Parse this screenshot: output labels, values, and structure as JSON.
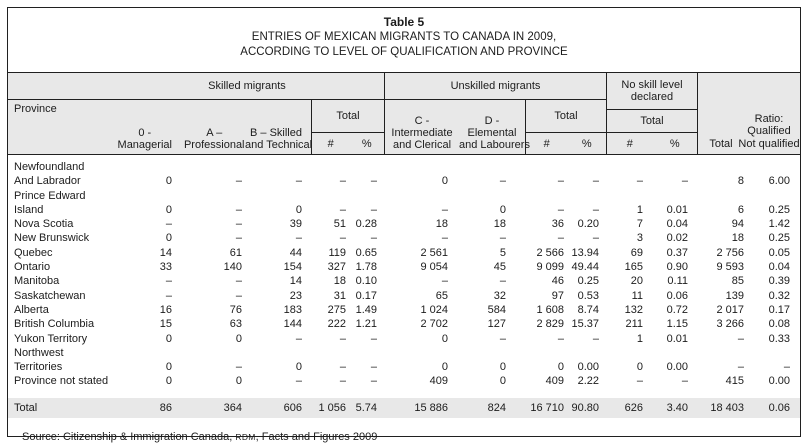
{
  "title": {
    "table_label": "Table 5",
    "line1": "ENTRIES OF MEXICAN MIGRANTS TO CANADA IN 2009,",
    "line2": "ACCORDING TO LEVEL OF QUALIFICATION AND PROVINCE"
  },
  "colors": {
    "band_gray": "#e8e8e8",
    "border": "#202020"
  },
  "header": {
    "province": "Province",
    "skilled_group": "Skilled migrants",
    "unskilled_group": "Unskilled migrants",
    "no_skill_group": "No skill level\ndeclared",
    "col_managerial": "0 -\nManagerial",
    "col_professional": "A –\nProfessional",
    "col_skilled_technical": "B – Skilled\nand Technical",
    "col_intermediate": "C -\nIntermediate\nand Clerical",
    "col_elemental": "D -\nElemental\nand Labourers",
    "total_label": "Total",
    "hash": "#",
    "percent": "%",
    "grand_total": "Total",
    "ratio": "Ratio:\nQualified\nNot qualified"
  },
  "rows": [
    {
      "province": "Newfoundland\nAnd Labrador",
      "values": [
        "0",
        "–",
        "–",
        "–",
        "–",
        "0",
        "–",
        "–",
        "–",
        "–",
        "–",
        "8",
        "6.00"
      ]
    },
    {
      "province": "Prince Edward Island",
      "values": [
        "0",
        "–",
        "0",
        "–",
        "–",
        "–",
        "0",
        "–",
        "–",
        "1",
        "0.01",
        "6",
        "0.25"
      ]
    },
    {
      "province": "Nova Scotia",
      "values": [
        "–",
        "–",
        "39",
        "51",
        "0.28",
        "18",
        "18",
        "36",
        "0.20",
        "7",
        "0.04",
        "94",
        "1.42"
      ]
    },
    {
      "province": "New Brunswick",
      "values": [
        "0",
        "–",
        "–",
        "–",
        "–",
        "–",
        "–",
        "–",
        "–",
        "3",
        "0.02",
        "18",
        "0.25"
      ]
    },
    {
      "province": "Quebec",
      "values": [
        "14",
        "61",
        "44",
        "119",
        "0.65",
        "2 561",
        "5",
        "2 566",
        "13.94",
        "69",
        "0.37",
        "2 756",
        "0.05"
      ]
    },
    {
      "province": "Ontario",
      "values": [
        "33",
        "140",
        "154",
        "327",
        "1.78",
        "9 054",
        "45",
        "9 099",
        "49.44",
        "165",
        "0.90",
        "9 593",
        "0.04"
      ]
    },
    {
      "province": "Manitoba",
      "values": [
        "–",
        "–",
        "14",
        "18",
        "0.10",
        "–",
        "–",
        "46",
        "0.25",
        "20",
        "0.11",
        "85",
        "0.39"
      ]
    },
    {
      "province": "Saskatchewan",
      "values": [
        "–",
        "–",
        "23",
        "31",
        "0.17",
        "65",
        "32",
        "97",
        "0.53",
        "11",
        "0.06",
        "139",
        "0.32"
      ]
    },
    {
      "province": "Alberta",
      "values": [
        "16",
        "76",
        "183",
        "275",
        "1.49",
        "1 024",
        "584",
        "1 608",
        "8.74",
        "132",
        "0.72",
        "2 017",
        "0.17"
      ]
    },
    {
      "province": "British Columbia",
      "values": [
        "15",
        "63",
        "144",
        "222",
        "1.21",
        "2 702",
        "127",
        "2 829",
        "15.37",
        "211",
        "1.15",
        "3 266",
        "0.08"
      ]
    },
    {
      "province": "Yukon Territory",
      "values": [
        "0",
        "0",
        "–",
        "–",
        "–",
        "0",
        "–",
        "–",
        "–",
        "1",
        "0.01",
        "–",
        "0.33"
      ]
    },
    {
      "province": "Northwest Territories",
      "values": [
        "0",
        "–",
        "0",
        "–",
        "–",
        "0",
        "0",
        "0",
        "0.00",
        "0",
        "0.00",
        "–",
        "–"
      ]
    },
    {
      "province": "Province not stated",
      "values": [
        "0",
        "0",
        "–",
        "–",
        "–",
        "409",
        "0",
        "409",
        "2.22",
        "–",
        "–",
        "415",
        "0.00"
      ]
    }
  ],
  "total_row": {
    "label": "Total",
    "values": [
      "86",
      "364",
      "606",
      "1 056",
      "5.74",
      "15 886",
      "824",
      "16 710",
      "90.80",
      "626",
      "3.40",
      "18 403",
      "0.06"
    ]
  },
  "source": {
    "prefix": "Source: Citizenship & Immigration Canada, ",
    "rdm": "RDM",
    "suffix": ", Facts and Figures 2009"
  }
}
